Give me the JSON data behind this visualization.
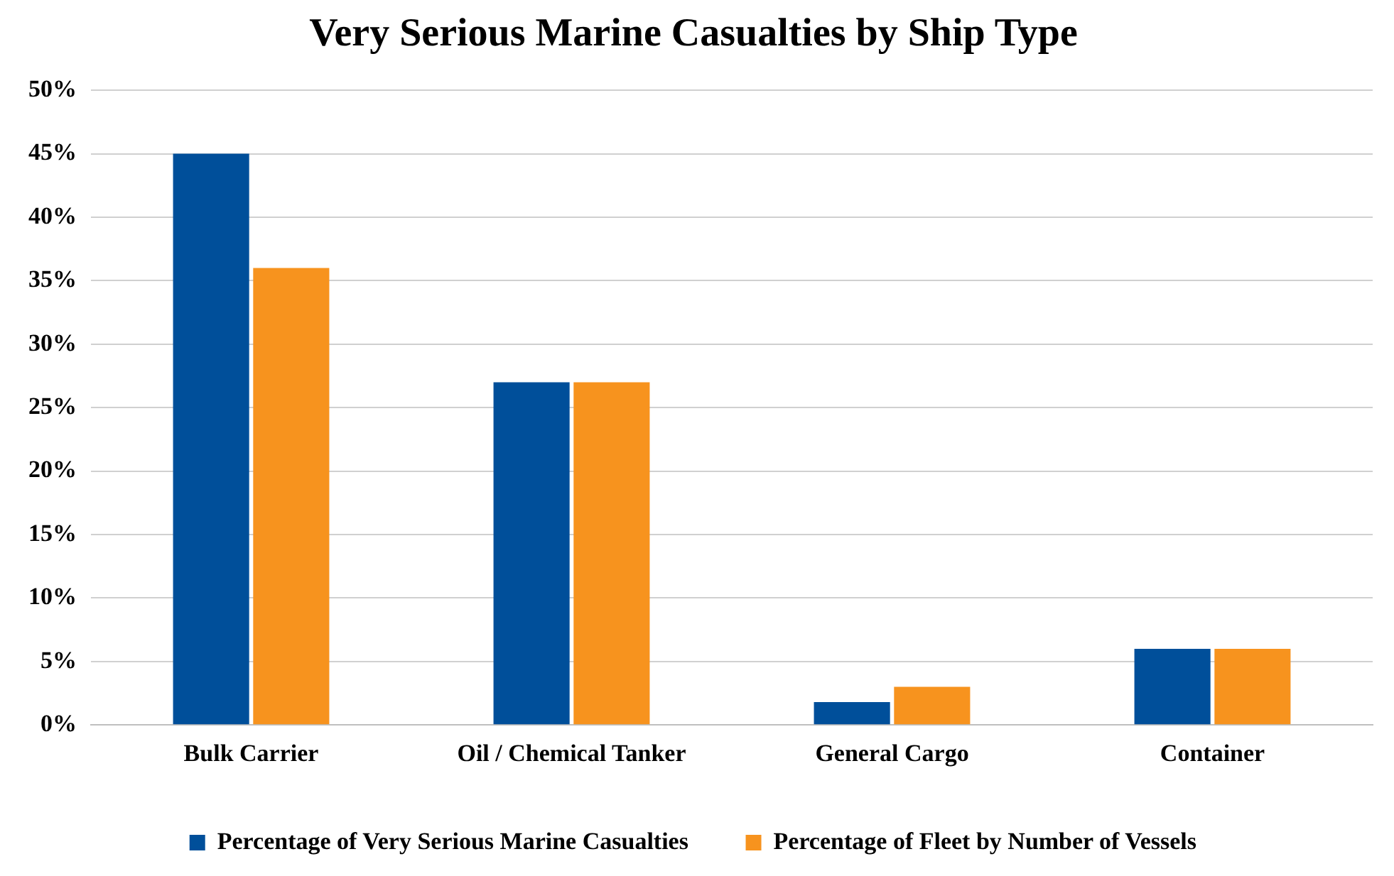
{
  "chart_data": {
    "type": "bar",
    "title": "Very Serious Marine Casualties by Ship Type",
    "categories": [
      "Bulk Carrier",
      "Oil / Chemical Tanker",
      "General Cargo",
      "Container"
    ],
    "series": [
      {
        "name": "Percentage of Very Serious Marine Casualties",
        "color": "#004f9a",
        "values": [
          45,
          27,
          1.8,
          6
        ]
      },
      {
        "name": "Percentage of Fleet by Number of Vessels",
        "color": "#f7931e",
        "values": [
          36,
          27,
          3,
          6
        ]
      }
    ],
    "ylim": [
      0,
      50
    ],
    "yticks": [
      {
        "value": 0,
        "label": "0%"
      },
      {
        "value": 5,
        "label": "5%"
      },
      {
        "value": 10,
        "label": "10%"
      },
      {
        "value": 15,
        "label": "15%"
      },
      {
        "value": 20,
        "label": "20%"
      },
      {
        "value": 25,
        "label": "25%"
      },
      {
        "value": 30,
        "label": "30%"
      },
      {
        "value": 35,
        "label": "35%"
      },
      {
        "value": 40,
        "label": "40%"
      },
      {
        "value": 45,
        "label": "45%"
      },
      {
        "value": 50,
        "label": "50%"
      }
    ],
    "grid": "y",
    "legend": "bottom"
  }
}
